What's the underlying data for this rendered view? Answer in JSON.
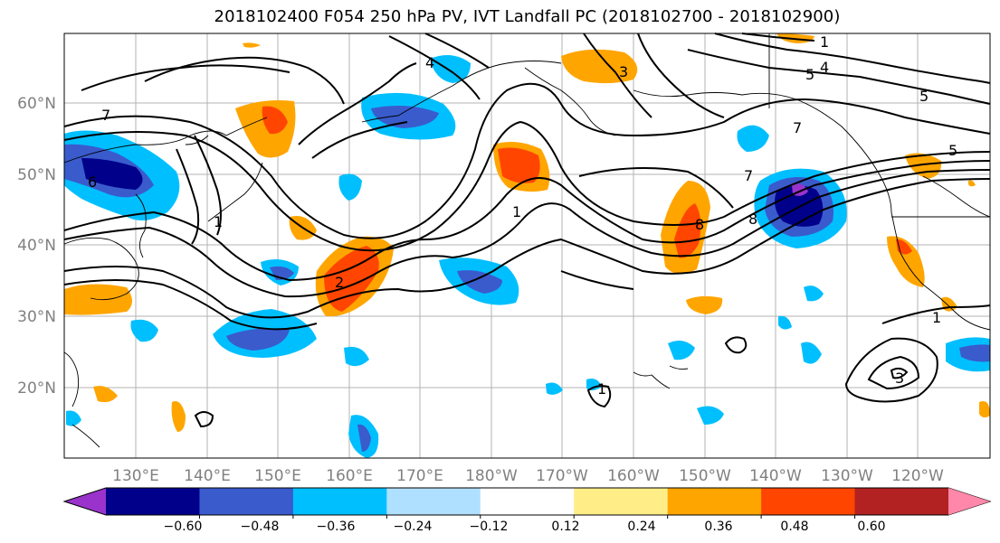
{
  "title": "2018102400 F054 250 hPa PV, IVT Landfall PC (2018102700 - 2018102900)",
  "map": {
    "lat_labels": [
      "60°N",
      "50°N",
      "40°N",
      "30°N",
      "20°N"
    ],
    "lon_labels": [
      "130°E",
      "140°E",
      "150°E",
      "160°E",
      "170°E",
      "180°W",
      "170°W",
      "160°W",
      "150°W",
      "140°W",
      "130°W",
      "120°W"
    ],
    "contour_labels": [
      "7",
      "7",
      "6",
      "4",
      "3",
      "5",
      "4",
      "5",
      "8",
      "8",
      "7",
      "1",
      "2",
      "1",
      "3",
      "1",
      "1",
      "1",
      "5"
    ]
  },
  "colorbar": {
    "colors": [
      "#9933cc",
      "#00008b",
      "#3a5bcc",
      "#00bfff",
      "#b0e0ff",
      "#ffffff",
      "#ffee88",
      "#ffa500",
      "#ff4500",
      "#b22222",
      "#ff88aa"
    ],
    "tick_labels": [
      "−0.60",
      "−0.48",
      "−0.36",
      "−0.24",
      "−0.12",
      "0.12",
      "0.24",
      "0.36",
      "0.48",
      "0.60"
    ]
  }
}
